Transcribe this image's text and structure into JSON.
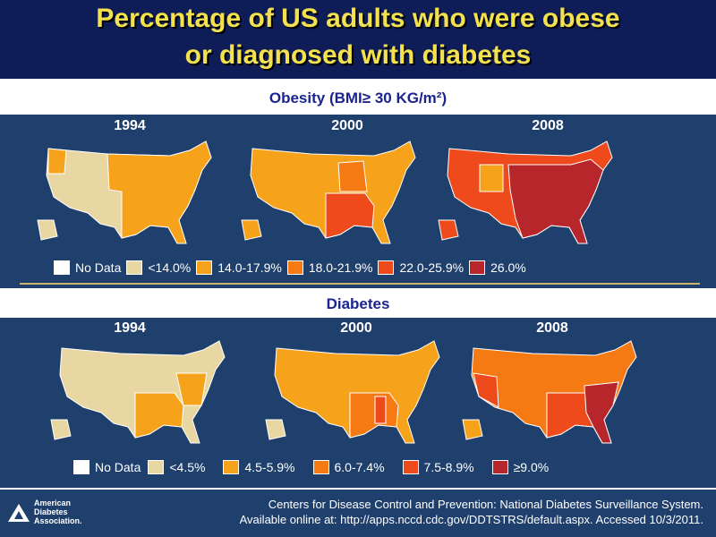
{
  "title": {
    "line1": "Percentage of US adults who were obese",
    "line2": "or  diagnosed with diabetes"
  },
  "obesity": {
    "heading": "Obesity (BMI≥ 30 KG/m²)",
    "years": [
      "1994",
      "2000",
      "2008"
    ],
    "legend": [
      {
        "label": "No Data",
        "color": "#ffffff"
      },
      {
        "label": "<14.0%",
        "color": "#e8d7a2"
      },
      {
        "label": "14.0-17.9%",
        "color": "#f6a21a"
      },
      {
        "label": "18.0-21.9%",
        "color": "#f57a14"
      },
      {
        "label": "22.0-25.9%",
        "color": "#ef4a1c"
      },
      {
        "label": "26.0%",
        "color": "#b7262b"
      }
    ]
  },
  "diabetes": {
    "heading": "Diabetes",
    "years": [
      "1994",
      "2000",
      "2008"
    ],
    "legend": [
      {
        "label": "No Data",
        "color": "#ffffff"
      },
      {
        "label": "<4.5%",
        "color": "#e8d7a2"
      },
      {
        "label": "4.5-5.9%",
        "color": "#f6a21a"
      },
      {
        "label": "6.0-7.4%",
        "color": "#f57a14"
      },
      {
        "label": "7.5-8.9%",
        "color": "#ef4a1c"
      },
      {
        "label": "≥9.0%",
        "color": "#b7262b"
      }
    ]
  },
  "footer": {
    "logo_line1": "American",
    "logo_line2": "Diabetes",
    "logo_line3": "Association.",
    "citation_line1": "Centers for Disease Control and Prevention: National Diabetes Surveillance System.",
    "citation_line2": "Available online at: http://apps.nccd.cdc.gov/DDTSTRS/default.aspx. Accessed 10/3/2011."
  }
}
